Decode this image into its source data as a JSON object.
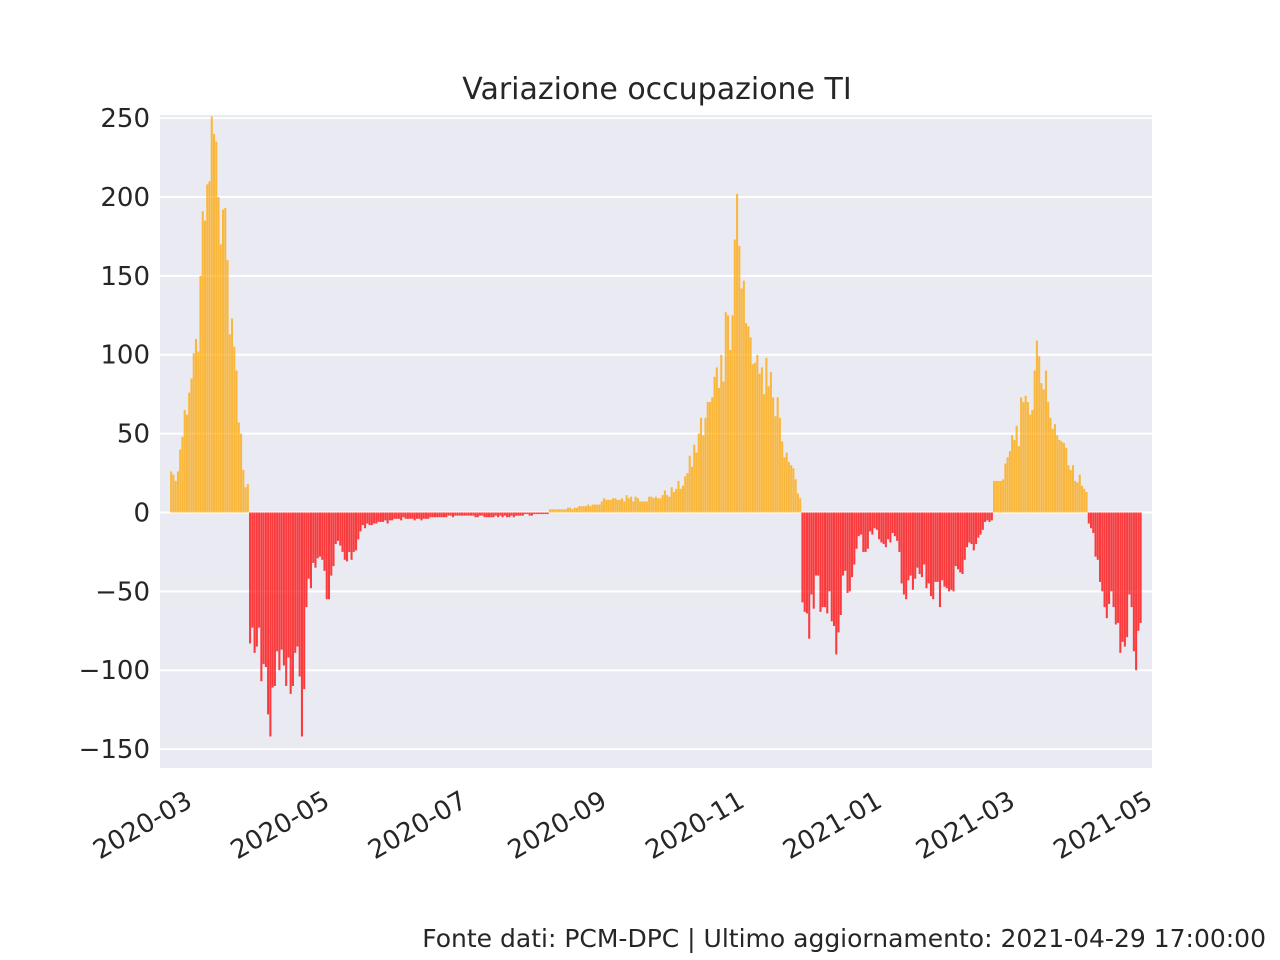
{
  "footer": "Fonte dati: PCM-DPC | Ultimo aggiornamento: 2021-04-29 17:00:00",
  "colors": {
    "positive": "#FFA500",
    "negative": "#FF0000",
    "plot_bg": "#EAEAF2",
    "grid": "#FFFFFF",
    "text": "#262626"
  },
  "chart_data": {
    "type": "bar",
    "title": "Variazione occupazione TI",
    "xlabel": "",
    "ylabel": "",
    "x_start": "2020-02-24",
    "x_end": "2021-04-29",
    "ylim": [
      -162,
      252
    ],
    "yticks": [
      250,
      200,
      150,
      100,
      50,
      0,
      -50,
      -100,
      -150
    ],
    "xticks": [
      "2020-03-01",
      "2020-05-01",
      "2020-07-01",
      "2020-09-01",
      "2020-11-01",
      "2021-01-01",
      "2021-03-01",
      "2021-05-01"
    ],
    "xtick_labels": [
      "2020-03",
      "2020-05",
      "2020-07",
      "2020-09",
      "2020-11",
      "2021-01",
      "2021-03",
      "2021-05"
    ],
    "grid": true,
    "legend": "none",
    "anchors": [
      [
        "2020-02-24",
        26
      ],
      [
        "2020-02-26",
        20
      ],
      [
        "2020-02-28",
        40
      ],
      [
        "2020-03-02",
        62
      ],
      [
        "2020-03-04",
        85
      ],
      [
        "2020-03-06",
        110
      ],
      [
        "2020-03-08",
        150
      ],
      [
        "2020-03-10",
        185
      ],
      [
        "2020-03-12",
        210
      ],
      [
        "2020-03-14",
        240
      ],
      [
        "2020-03-16",
        200
      ],
      [
        "2020-03-18",
        192
      ],
      [
        "2020-03-20",
        160
      ],
      [
        "2020-03-22",
        123
      ],
      [
        "2020-03-24",
        90
      ],
      [
        "2020-03-26",
        50
      ],
      [
        "2020-03-28",
        16
      ],
      [
        "2020-03-31",
        -73
      ],
      [
        "2020-04-02",
        -85
      ],
      [
        "2020-04-04",
        -107
      ],
      [
        "2020-04-06",
        -98
      ],
      [
        "2020-04-08",
        -142
      ],
      [
        "2020-04-10",
        -110
      ],
      [
        "2020-04-12",
        -100
      ],
      [
        "2020-04-14",
        -97
      ],
      [
        "2020-04-16",
        -92
      ],
      [
        "2020-04-18",
        -110
      ],
      [
        "2020-04-20",
        -85
      ],
      [
        "2020-04-22",
        -142
      ],
      [
        "2020-04-24",
        -60
      ],
      [
        "2020-04-26",
        -48
      ],
      [
        "2020-04-28",
        -35
      ],
      [
        "2020-05-01",
        -30
      ],
      [
        "2020-05-04",
        -55
      ],
      [
        "2020-05-07",
        -20
      ],
      [
        "2020-05-10",
        -25
      ],
      [
        "2020-05-14",
        -30
      ],
      [
        "2020-05-18",
        -12
      ],
      [
        "2020-05-22",
        -8
      ],
      [
        "2020-06-01",
        -5
      ],
      [
        "2020-06-15",
        -4
      ],
      [
        "2020-07-01",
        -2
      ],
      [
        "2020-07-20",
        -3
      ],
      [
        "2020-08-05",
        -1
      ],
      [
        "2020-08-15",
        2
      ],
      [
        "2020-08-25",
        4
      ],
      [
        "2020-09-05",
        8
      ],
      [
        "2020-09-15",
        10
      ],
      [
        "2020-09-25",
        9
      ],
      [
        "2020-10-05",
        15
      ],
      [
        "2020-10-10",
        25
      ],
      [
        "2020-10-15",
        50
      ],
      [
        "2020-10-20",
        70
      ],
      [
        "2020-10-25",
        100
      ],
      [
        "2020-10-28",
        125
      ],
      [
        "2020-11-01",
        202
      ],
      [
        "2020-11-05",
        120
      ],
      [
        "2020-11-10",
        100
      ],
      [
        "2020-11-15",
        80
      ],
      [
        "2020-11-20",
        60
      ],
      [
        "2020-11-25",
        30
      ],
      [
        "2020-11-28",
        12
      ],
      [
        "2020-12-01",
        -63
      ],
      [
        "2020-12-03",
        -80
      ],
      [
        "2020-12-06",
        -40
      ],
      [
        "2020-12-09",
        -60
      ],
      [
        "2020-12-12",
        -50
      ],
      [
        "2020-12-15",
        -90
      ],
      [
        "2020-12-18",
        -40
      ],
      [
        "2020-12-21",
        -50
      ],
      [
        "2020-12-25",
        -15
      ],
      [
        "2020-12-28",
        -25
      ],
      [
        "2021-01-01",
        -10
      ],
      [
        "2021-01-05",
        -20
      ],
      [
        "2021-01-10",
        -15
      ],
      [
        "2021-01-15",
        -55
      ],
      [
        "2021-01-20",
        -35
      ],
      [
        "2021-01-25",
        -45
      ],
      [
        "2021-01-30",
        -60
      ],
      [
        "2021-02-05",
        -50
      ],
      [
        "2021-02-10",
        -30
      ],
      [
        "2021-02-15",
        -20
      ],
      [
        "2021-02-20",
        -5
      ],
      [
        "2021-02-25",
        20
      ],
      [
        "2021-03-01",
        35
      ],
      [
        "2021-03-05",
        55
      ],
      [
        "2021-03-10",
        70
      ],
      [
        "2021-03-15",
        99
      ],
      [
        "2021-03-20",
        60
      ],
      [
        "2021-03-25",
        45
      ],
      [
        "2021-03-30",
        30
      ],
      [
        "2021-04-04",
        15
      ],
      [
        "2021-04-07",
        -10
      ],
      [
        "2021-04-10",
        -30
      ],
      [
        "2021-04-13",
        -60
      ],
      [
        "2021-04-16",
        -50
      ],
      [
        "2021-04-19",
        -70
      ],
      [
        "2021-04-22",
        -85
      ],
      [
        "2021-04-25",
        -60
      ],
      [
        "2021-04-27",
        -100
      ],
      [
        "2021-04-29",
        -70
      ]
    ]
  }
}
